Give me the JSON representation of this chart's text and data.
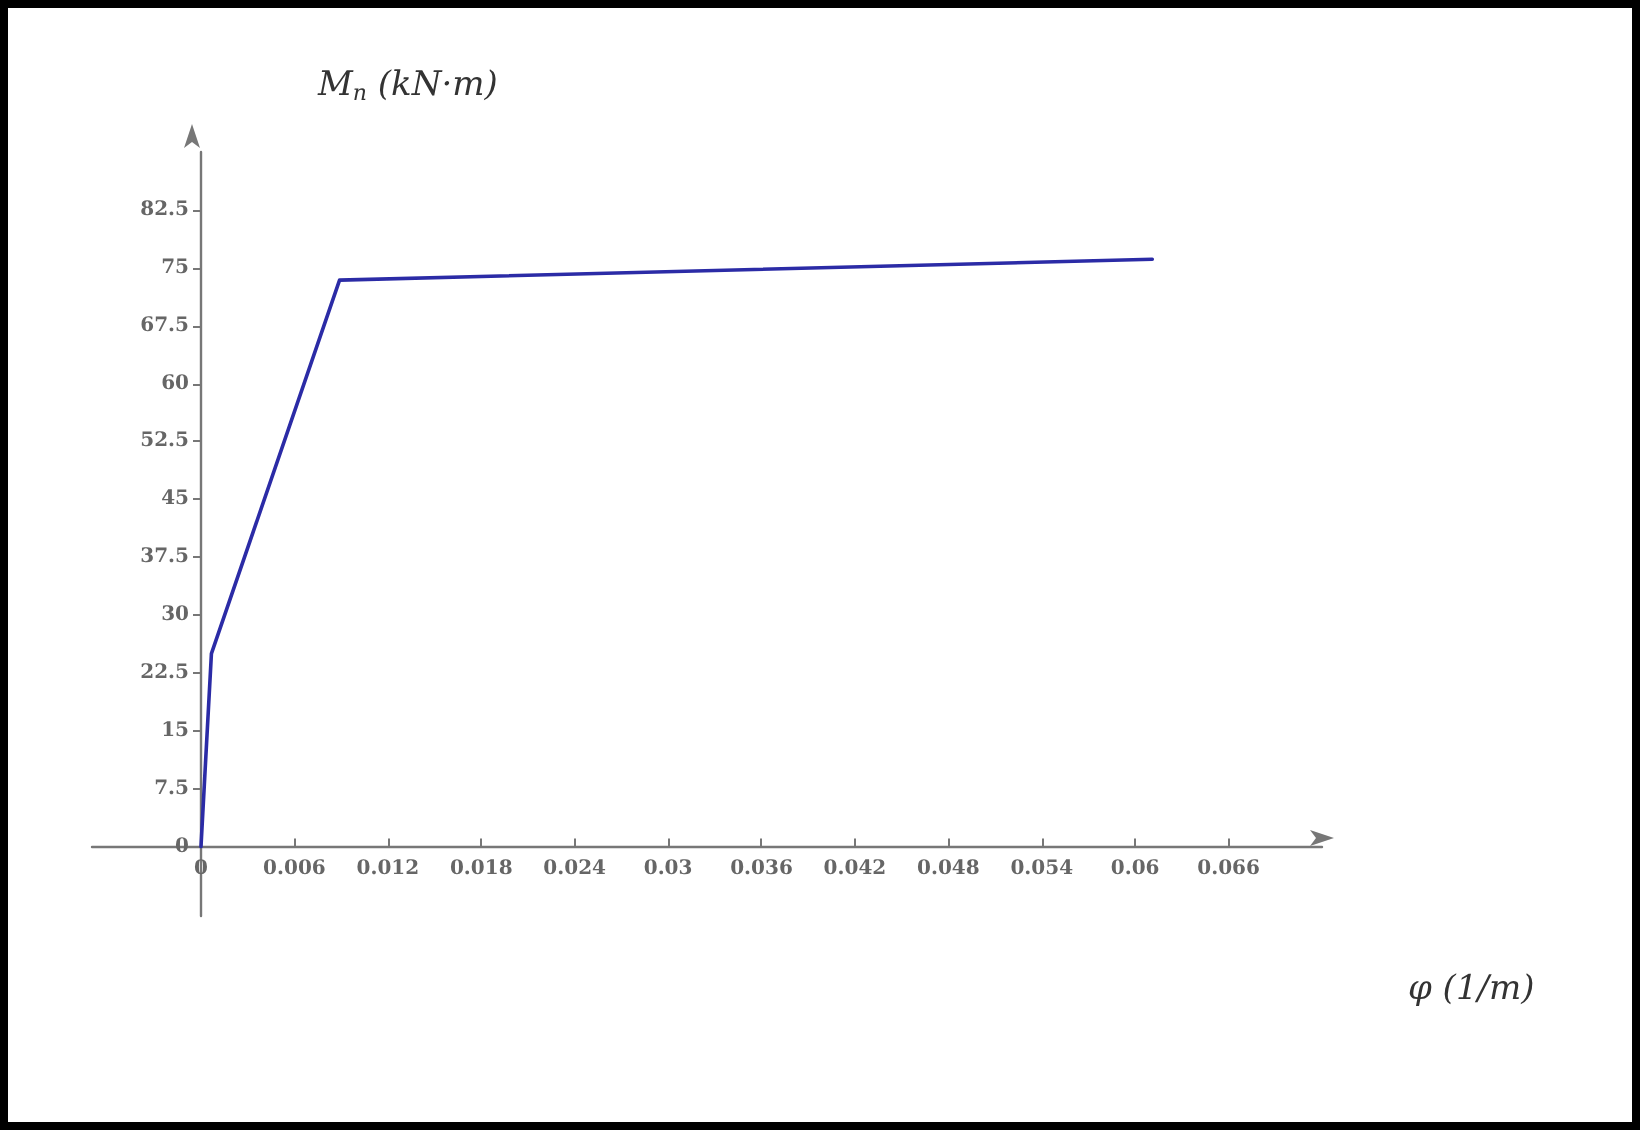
{
  "chart_data": {
    "type": "line",
    "xlabel": "φ (1/m)",
    "ylabel": "M$_{n}$ (kN·m)",
    "x": [
      0,
      0.00067,
      0.0089,
      0.0611
    ],
    "series": [
      {
        "color": "#2b2ba6",
        "values": [
          0,
          25,
          73.4,
          76.1
        ]
      }
    ],
    "xlim": [
      -0.007,
      0.072
    ],
    "xticks": [
      0,
      0.006,
      0.012,
      0.018,
      0.024,
      0.03,
      0.036,
      0.042,
      0.048,
      0.054,
      0.06,
      0.066
    ],
    "ylim": [
      -9,
      90
    ],
    "yticks": [
      0,
      7.5,
      15,
      22.5,
      30,
      37.5,
      45,
      52.5,
      60,
      67.5,
      75,
      82.5
    ],
    "marker": "none",
    "line_style": "solid"
  }
}
